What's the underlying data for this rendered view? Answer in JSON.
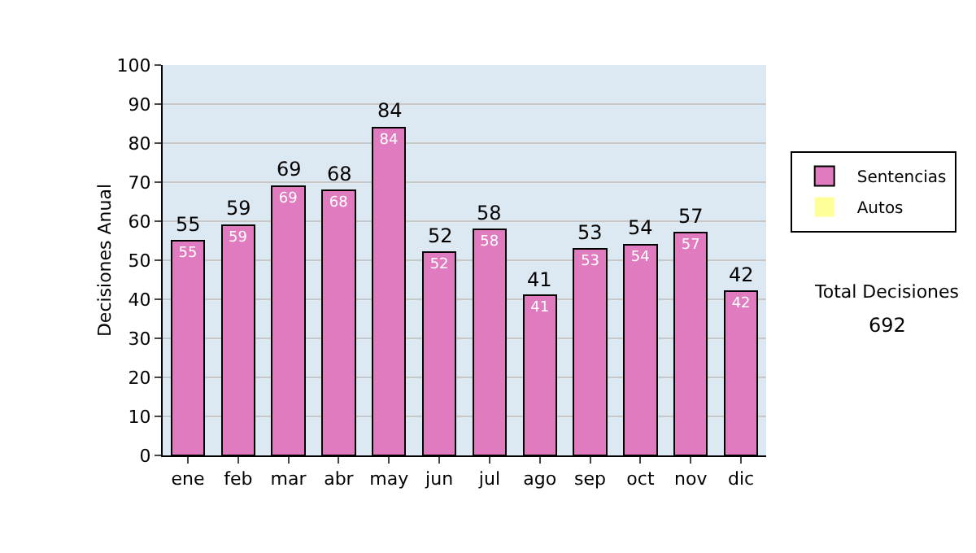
{
  "chart_data": {
    "type": "bar",
    "stacked": true,
    "ylabel": "Decisiones Anual",
    "categories": [
      "ene",
      "feb",
      "mar",
      "abr",
      "may",
      "jun",
      "jul",
      "ago",
      "sep",
      "oct",
      "nov",
      "dic"
    ],
    "series": [
      {
        "name": "Sentencias",
        "color": "#e07bc0",
        "values": [
          55,
          59,
          69,
          68,
          84,
          52,
          58,
          41,
          53,
          54,
          57,
          42
        ],
        "value_labels": [
          "55",
          "59",
          "69",
          "68",
          "84",
          "52",
          "58",
          "41",
          "53",
          "54",
          "57",
          "42"
        ]
      },
      {
        "name": "Autos",
        "color": "#ffff99",
        "values": [
          0,
          0,
          0,
          0,
          0,
          0,
          0,
          0,
          0,
          0,
          0,
          0
        ]
      }
    ],
    "totals": [
      "55",
      "59",
      "69",
      "68",
      "84",
      "52",
      "58",
      "41",
      "53",
      "54",
      "57",
      "42"
    ],
    "ylim": [
      0,
      100
    ],
    "yticks": [
      0,
      10,
      20,
      30,
      40,
      50,
      60,
      70,
      80,
      90,
      100
    ],
    "grid": "y",
    "legend": "right",
    "annotations": [
      "Total Decisiones",
      "692"
    ]
  }
}
